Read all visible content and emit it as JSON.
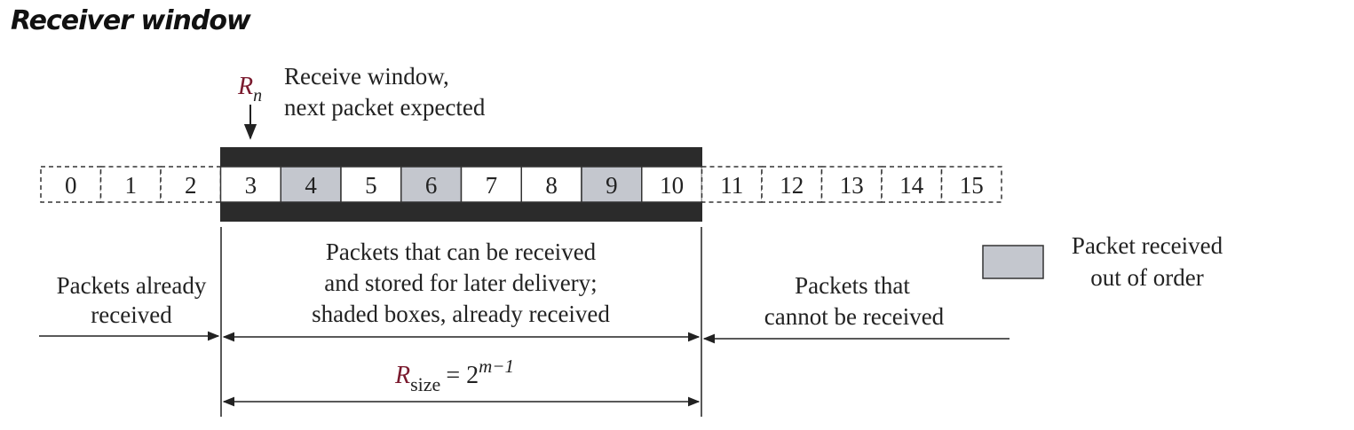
{
  "title": "Receiver window",
  "pointer": {
    "symbol": "R",
    "subscript": "n",
    "label_line1": "Receive window,",
    "label_line2": "next packet expected"
  },
  "packets": [
    {
      "n": "0",
      "state": "received"
    },
    {
      "n": "1",
      "state": "received"
    },
    {
      "n": "2",
      "state": "received"
    },
    {
      "n": "3",
      "state": "window"
    },
    {
      "n": "4",
      "state": "out-of-order"
    },
    {
      "n": "5",
      "state": "window"
    },
    {
      "n": "6",
      "state": "out-of-order"
    },
    {
      "n": "7",
      "state": "window"
    },
    {
      "n": "8",
      "state": "window"
    },
    {
      "n": "9",
      "state": "out-of-order"
    },
    {
      "n": "10",
      "state": "window"
    },
    {
      "n": "11",
      "state": "outside"
    },
    {
      "n": "12",
      "state": "outside"
    },
    {
      "n": "13",
      "state": "outside"
    },
    {
      "n": "14",
      "state": "outside"
    },
    {
      "n": "15",
      "state": "outside"
    }
  ],
  "regions": {
    "received": {
      "line1": "Packets already",
      "line2": "received"
    },
    "window": {
      "line1": "Packets that can be received",
      "line2": "and stored for later delivery;",
      "line3": "shaded boxes, already received"
    },
    "outside": {
      "line1": "Packets that",
      "line2": "cannot be received"
    }
  },
  "legend": {
    "line1": "Packet received",
    "line2": "out of order"
  },
  "size": {
    "symbol": "R",
    "subscript": "size",
    "equals": "= 2",
    "exponent": "m−1"
  },
  "colors": {
    "window_band": "#2b2b2b",
    "shaded": "#c4c7ce",
    "accent": "#7a1a2e",
    "line": "#222222"
  }
}
